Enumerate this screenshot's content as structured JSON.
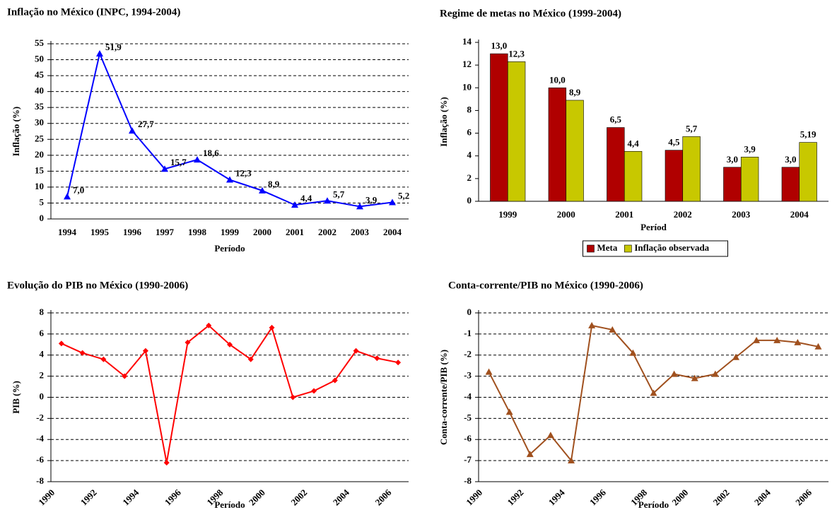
{
  "chart_data": [
    {
      "type": "line",
      "title": "Inflação no México (INPC, 1994-2004)",
      "x_label": "Período",
      "y_label": "Inflação (%)",
      "categories": [
        "1994",
        "1995",
        "1996",
        "1997",
        "1998",
        "1999",
        "2000",
        "2001",
        "2002",
        "2003",
        "2004"
      ],
      "series": [
        {
          "name": "INPC",
          "color": "#0000ff",
          "marker": "triangle",
          "values": [
            7.0,
            51.9,
            27.7,
            15.7,
            18.6,
            12.3,
            8.9,
            4.4,
            5.7,
            3.9,
            5.2
          ],
          "value_labels": [
            "7,0",
            "51,9",
            "27,7",
            "15,7",
            "18,6",
            "12,3",
            "8,9",
            "4,4",
            "5,7",
            "3,9",
            "5,2"
          ]
        }
      ],
      "ylim": [
        0,
        55
      ],
      "yticks": [
        0,
        5,
        10,
        15,
        20,
        25,
        30,
        35,
        40,
        45,
        50,
        55
      ],
      "grid": true
    },
    {
      "type": "bar",
      "title": "Regime de metas no México (1999-2004)",
      "x_label": "Períod",
      "y_label": "Inflação (%)",
      "categories": [
        "1999",
        "2000",
        "2001",
        "2002",
        "2003",
        "2004"
      ],
      "series": [
        {
          "name": "Meta",
          "color": "#b00000",
          "values": [
            13.0,
            10.0,
            6.5,
            4.5,
            3.0,
            3.0
          ],
          "value_labels": [
            "13,0",
            "10,0",
            "6,5",
            "4,5",
            "3,0",
            "3,0"
          ]
        },
        {
          "name": "Inflação observada",
          "color": "#c8c800",
          "values": [
            12.3,
            8.9,
            4.4,
            5.7,
            3.9,
            5.19
          ],
          "value_labels": [
            "12,3",
            "8,9",
            "4,4",
            "5,7",
            "3,9",
            "5,19"
          ]
        }
      ],
      "ylim": [
        0,
        14
      ],
      "yticks": [
        0,
        2,
        4,
        6,
        8,
        10,
        12,
        14
      ],
      "grid": false,
      "legend": "bottom"
    },
    {
      "type": "line",
      "title": "Evolução do PIB no México (1990-2006)",
      "x_label": "Período",
      "y_label": "PIB (%)",
      "categories": [
        "1990",
        null,
        "1992",
        null,
        "1994",
        null,
        "1996",
        null,
        "1998",
        null,
        "2000",
        null,
        "2002",
        null,
        "2004",
        null,
        "2006"
      ],
      "series": [
        {
          "name": "PIB",
          "color": "#ff0000",
          "marker": "diamond",
          "values": [
            5.1,
            4.2,
            3.6,
            2.0,
            4.4,
            -6.2,
            5.2,
            6.8,
            5.0,
            3.6,
            6.6,
            0.0,
            0.6,
            1.6,
            4.4,
            3.7,
            3.3
          ]
        }
      ],
      "ylim": [
        -8,
        8
      ],
      "yticks": [
        -8,
        -6,
        -4,
        -2,
        0,
        2,
        4,
        6,
        8
      ],
      "grid": true
    },
    {
      "type": "line",
      "title": "Conta-corrente/PIB no México (1990-2006)",
      "x_label": "Período",
      "y_label": "Conta-corrente/PIB (%)",
      "categories": [
        "1990",
        null,
        "1992",
        null,
        "1994",
        null,
        "1996",
        null,
        "1998",
        null,
        "2000",
        null,
        "2002",
        null,
        "2004",
        null,
        "2006"
      ],
      "series": [
        {
          "name": "Conta-corrente/PIB",
          "color": "#a0501e",
          "marker": "triangle",
          "values": [
            -2.8,
            -4.7,
            -6.7,
            -5.8,
            -7.0,
            -0.6,
            -0.8,
            -1.9,
            -3.8,
            -2.9,
            -3.1,
            -2.9,
            -2.1,
            -1.3,
            -1.3,
            -1.4,
            -1.6
          ]
        }
      ],
      "ylim": [
        -8,
        0
      ],
      "yticks": [
        -8,
        -7,
        -6,
        -5,
        -4,
        -3,
        -2,
        -1,
        0
      ],
      "grid": true
    }
  ]
}
